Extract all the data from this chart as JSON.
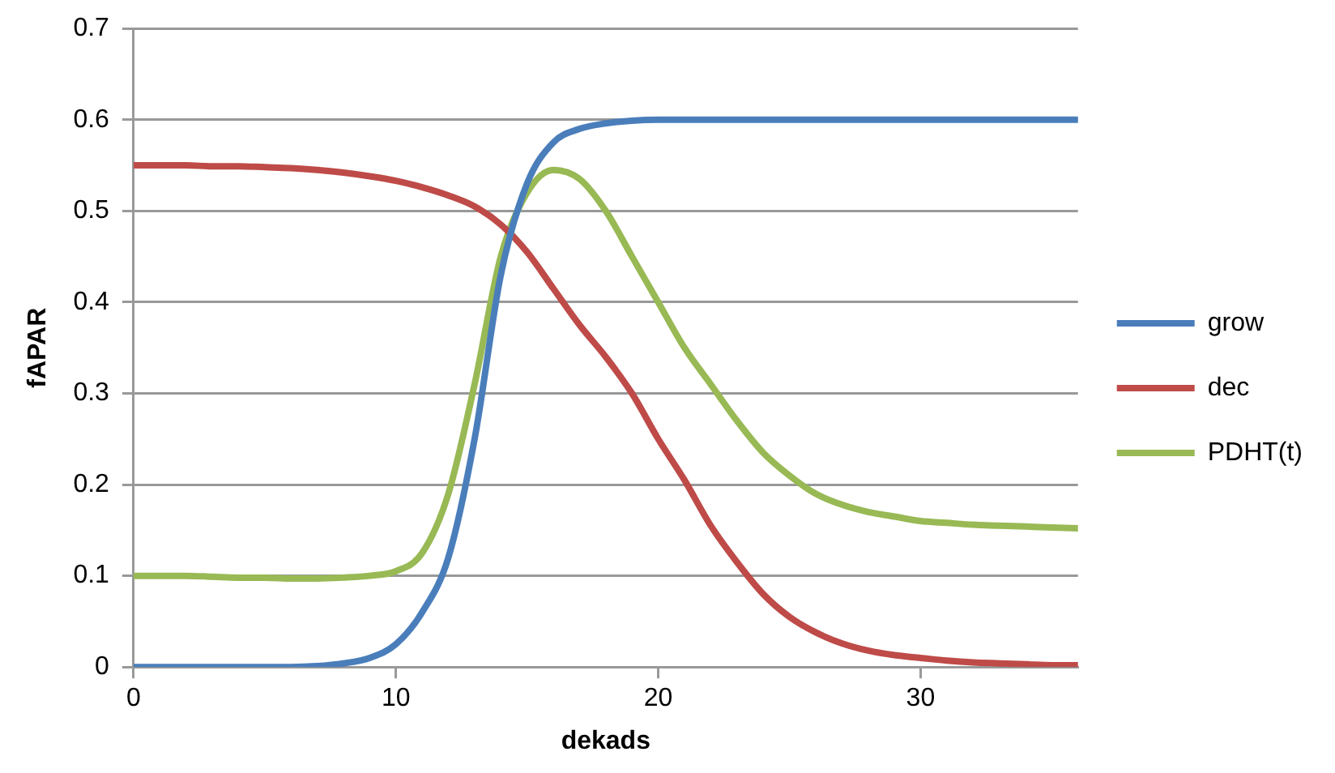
{
  "chart_data": {
    "type": "line",
    "xlabel": "dekads",
    "ylabel": "fAPAR",
    "x": [
      0,
      1,
      2,
      3,
      4,
      5,
      6,
      7,
      8,
      9,
      10,
      11,
      12,
      13,
      14,
      15,
      16,
      17,
      18,
      19,
      20,
      21,
      22,
      23,
      24,
      25,
      26,
      27,
      28,
      29,
      30,
      31,
      32,
      33,
      34,
      35,
      36
    ],
    "series": [
      {
        "name": "grow",
        "color": "#4a7ebb",
        "values": [
          0,
          0,
          0,
          0,
          0,
          0,
          0,
          0.001,
          0.004,
          0.01,
          0.025,
          0.06,
          0.12,
          0.25,
          0.43,
          0.53,
          0.575,
          0.59,
          0.596,
          0.599,
          0.6,
          0.6,
          0.6,
          0.6,
          0.6,
          0.6,
          0.6,
          0.6,
          0.6,
          0.6,
          0.6,
          0.6,
          0.6,
          0.6,
          0.6,
          0.6,
          0.6
        ]
      },
      {
        "name": "dec",
        "color": "#be4b48",
        "values": [
          0.55,
          0.55,
          0.55,
          0.549,
          0.549,
          0.548,
          0.547,
          0.545,
          0.542,
          0.538,
          0.533,
          0.526,
          0.517,
          0.505,
          0.485,
          0.455,
          0.415,
          0.375,
          0.34,
          0.3,
          0.25,
          0.205,
          0.155,
          0.115,
          0.08,
          0.055,
          0.038,
          0.026,
          0.018,
          0.013,
          0.01,
          0.007,
          0.005,
          0.004,
          0.003,
          0.002,
          0.002
        ]
      },
      {
        "name": "PDHT(t)",
        "color": "#98b954",
        "values": [
          0.1,
          0.1,
          0.1,
          0.099,
          0.098,
          0.098,
          0.097,
          0.097,
          0.098,
          0.1,
          0.105,
          0.125,
          0.19,
          0.31,
          0.45,
          0.52,
          0.545,
          0.535,
          0.5,
          0.45,
          0.4,
          0.35,
          0.31,
          0.27,
          0.235,
          0.21,
          0.19,
          0.178,
          0.17,
          0.165,
          0.16,
          0.158,
          0.156,
          0.155,
          0.154,
          0.153,
          0.152
        ]
      }
    ],
    "xlim": [
      0,
      36
    ],
    "xticks": [
      0,
      10,
      20,
      30
    ],
    "ylim": [
      0,
      0.7
    ],
    "yticks": [
      0,
      0.1,
      0.2,
      0.3,
      0.4,
      0.5,
      0.6,
      0.7
    ],
    "grid": "y",
    "legend": "right",
    "marker": "none",
    "line_style": "solid"
  }
}
